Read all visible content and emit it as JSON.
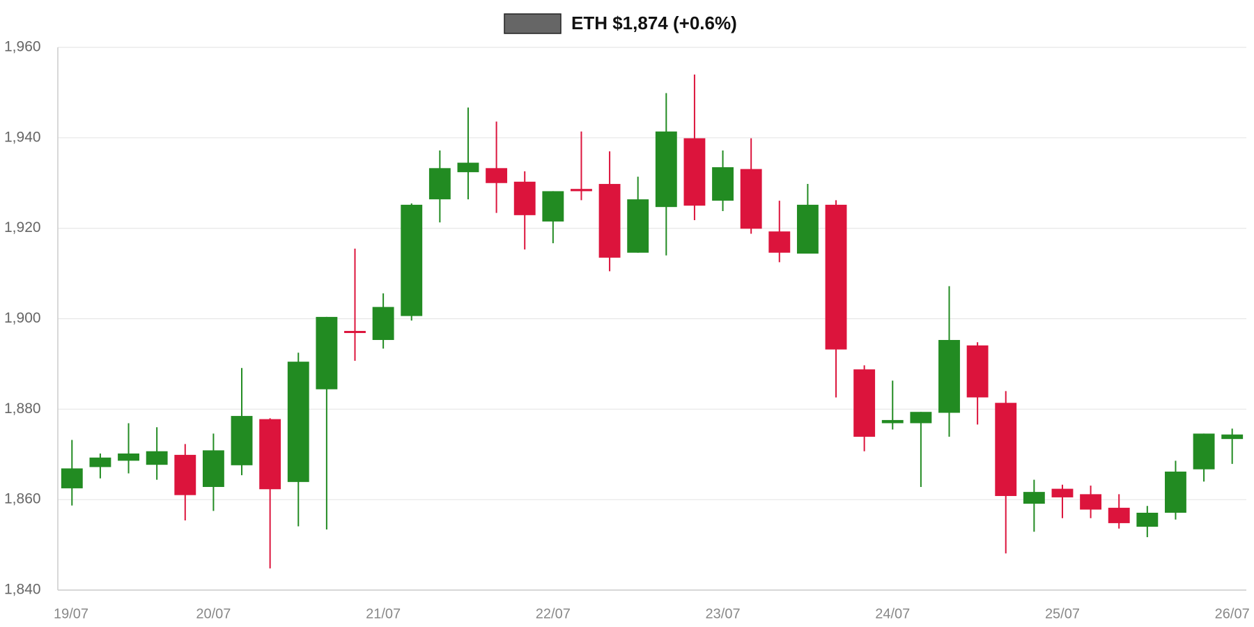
{
  "chart_data": {
    "type": "candlestick",
    "series": [
      {
        "name": "ETH $1,874 (+0.6%)",
        "color": "#666666",
        "up_color": "#228b22",
        "down_color": "#dc143c",
        "open": [
          1862.5,
          1867.2,
          1868.6,
          1867.7,
          1869.9,
          1862.8,
          1867.6,
          1877.8,
          1863.9,
          1884.4,
          1897.3,
          1895.3,
          1900.6,
          1926.4,
          1932.4,
          1933.3,
          1930.3,
          1921.5,
          1928.7,
          1929.8,
          1914.6,
          1924.7,
          1939.9,
          1926.1,
          1933.1,
          1919.3,
          1914.4,
          1925.2,
          1888.8,
          1876.9,
          1876.9,
          1879.2,
          1894.1,
          1881.4,
          1859.1,
          1862.4,
          1861.2,
          1858.2,
          1854.0,
          1857.1,
          1866.7,
          1873.4
        ],
        "high": [
          1873.2,
          1870.2,
          1876.9,
          1876.0,
          1872.3,
          1874.6,
          1889.1,
          1878.0,
          1892.5,
          1900.4,
          1915.5,
          1905.6,
          1925.5,
          1937.2,
          1946.7,
          1943.6,
          1932.6,
          1928.2,
          1941.4,
          1937.0,
          1931.4,
          1949.9,
          1954.0,
          1937.2,
          1939.9,
          1926.1,
          1929.8,
          1926.2,
          1889.7,
          1886.3,
          1879.4,
          1907.2,
          1894.8,
          1884.0,
          1864.4,
          1863.3,
          1863.1,
          1861.2,
          1858.6,
          1868.6,
          1874.6,
          1875.7
        ],
        "low": [
          1858.7,
          1864.7,
          1865.8,
          1864.4,
          1855.4,
          1857.5,
          1865.4,
          1844.8,
          1854.1,
          1853.4,
          1890.7,
          1893.4,
          1899.6,
          1921.3,
          1926.4,
          1923.4,
          1915.3,
          1916.7,
          1926.2,
          1910.5,
          1914.6,
          1914.0,
          1921.8,
          1923.8,
          1918.8,
          1912.5,
          1914.4,
          1882.6,
          1870.7,
          1875.5,
          1862.8,
          1873.9,
          1876.6,
          1848.1,
          1852.9,
          1855.9,
          1855.9,
          1853.6,
          1851.7,
          1855.6,
          1864.0,
          1867.9
        ],
        "close": [
          1866.9,
          1869.3,
          1870.2,
          1870.7,
          1861.0,
          1870.9,
          1878.5,
          1862.3,
          1890.5,
          1900.4,
          1897.0,
          1902.6,
          1925.2,
          1933.3,
          1934.5,
          1930.0,
          1922.9,
          1928.2,
          1928.2,
          1913.5,
          1926.4,
          1941.4,
          1925.0,
          1933.5,
          1919.9,
          1914.6,
          1925.2,
          1893.2,
          1873.9,
          1877.6,
          1879.4,
          1895.3,
          1882.6,
          1860.8,
          1861.7,
          1860.5,
          1857.8,
          1854.8,
          1857.1,
          1866.2,
          1874.6,
          1874.4
        ]
      }
    ],
    "x": [
      4,
      8,
      12,
      16,
      20,
      24,
      28,
      32,
      36,
      40,
      44,
      48,
      52,
      56,
      60,
      64,
      68,
      72,
      76,
      80,
      84,
      88,
      92,
      96,
      100,
      104,
      108,
      112,
      116,
      120,
      124,
      128,
      132,
      136,
      140,
      144,
      148,
      152,
      156,
      160,
      164,
      168
    ],
    "xlim": [
      2,
      170
    ],
    "xticks": [
      {
        "value": 0,
        "label": "19/07"
      },
      {
        "value": 24,
        "label": "20/07"
      },
      {
        "value": 48,
        "label": "21/07"
      },
      {
        "value": 72,
        "label": "22/07"
      },
      {
        "value": 96,
        "label": "23/07"
      },
      {
        "value": 120,
        "label": "24/07"
      },
      {
        "value": 144,
        "label": "25/07"
      },
      {
        "value": 168,
        "label": "26/07"
      }
    ],
    "ylim": [
      1840,
      1960
    ],
    "yticks": [
      {
        "value": 1840,
        "label": "1,840"
      },
      {
        "value": 1860,
        "label": "1,860"
      },
      {
        "value": 1880,
        "label": "1,880"
      },
      {
        "value": 1900,
        "label": "1,900"
      },
      {
        "value": 1920,
        "label": "1,920"
      },
      {
        "value": 1940,
        "label": "1,940"
      },
      {
        "value": 1960,
        "label": "1,960"
      }
    ],
    "grid": true
  }
}
